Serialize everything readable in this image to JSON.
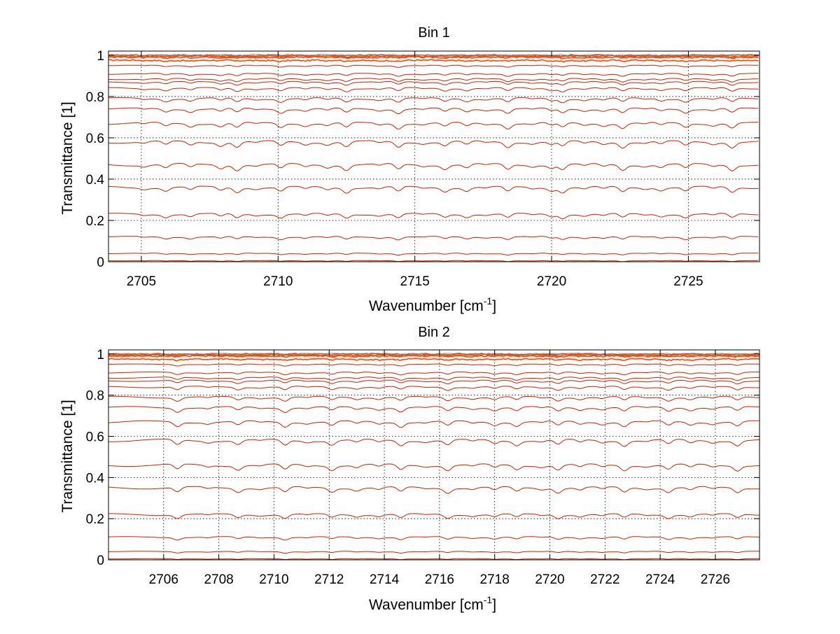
{
  "chart_data": [
    {
      "type": "line",
      "title": "Bin 1",
      "xlabel": "Wavenumber [cm",
      "xlabel_sup": "-1",
      "xlabel_end": "]",
      "ylabel": "Transmittance [1]",
      "xlim": [
        2703.8,
        2727.6
      ],
      "ylim": [
        0,
        1.02
      ],
      "x_ticks": [
        2705,
        2710,
        2715,
        2720,
        2725
      ],
      "y_ticks": [
        0,
        0.2,
        0.4,
        0.6,
        0.8,
        1
      ],
      "grid": true,
      "line_baselines": [
        0.0,
        0.005,
        0.04,
        0.12,
        0.23,
        0.36,
        0.47,
        0.58,
        0.67,
        0.74,
        0.79,
        0.84,
        0.87,
        0.885,
        0.91,
        0.95,
        0.975,
        0.99,
        0.995,
        1.0
      ],
      "absorption_lines": [
        2705.1,
        2705.9,
        2706.8,
        2707.9,
        2708.5,
        2709.2,
        2710.1,
        2711.0,
        2711.8,
        2712.5,
        2713.7,
        2714.4,
        2715.3,
        2716.1,
        2716.9,
        2717.6,
        2718.4,
        2719.3,
        2720.0,
        2720.4,
        2721.2,
        2721.9,
        2722.6,
        2723.4,
        2724.0,
        2724.9,
        2725.9,
        2726.6
      ],
      "colors": {
        "lines": "#cc2200",
        "top_lines": "#ff4400",
        "accent_lines": [
          "#ffaa00",
          "#22aaaa",
          "#3366ff"
        ],
        "grid": "#000000"
      }
    },
    {
      "type": "line",
      "title": "Bin 2",
      "xlabel": "Wavenumber [cm",
      "xlabel_sup": "-1",
      "xlabel_end": "]",
      "ylabel": "Transmittance [1]",
      "xlim": [
        2704.0,
        2727.6
      ],
      "ylim": [
        0,
        1.02
      ],
      "x_ticks": [
        2706,
        2708,
        2710,
        2712,
        2714,
        2716,
        2718,
        2720,
        2722,
        2724,
        2726
      ],
      "y_ticks": [
        0,
        0.2,
        0.4,
        0.6,
        0.8,
        1
      ],
      "grid": true,
      "line_baselines": [
        0.0,
        0.005,
        0.04,
        0.11,
        0.22,
        0.35,
        0.46,
        0.58,
        0.67,
        0.74,
        0.79,
        0.84,
        0.87,
        0.885,
        0.91,
        0.95,
        0.975,
        0.99,
        0.995,
        1.0
      ],
      "absorption_lines": [
        2706.5,
        2707.6,
        2708.7,
        2709.5,
        2710.4,
        2711.2,
        2712.1,
        2713.0,
        2713.8,
        2714.6,
        2715.5,
        2716.3,
        2717.2,
        2718.0,
        2718.8,
        2719.7,
        2720.3,
        2721.1,
        2721.9,
        2722.7,
        2723.5,
        2724.3,
        2725.1,
        2725.9,
        2726.8
      ],
      "colors": {
        "lines": "#cc2200",
        "top_lines": "#ff4400",
        "accent_lines": [
          "#ffaa00",
          "#22aaaa",
          "#3366ff"
        ],
        "grid": "#000000"
      }
    }
  ]
}
